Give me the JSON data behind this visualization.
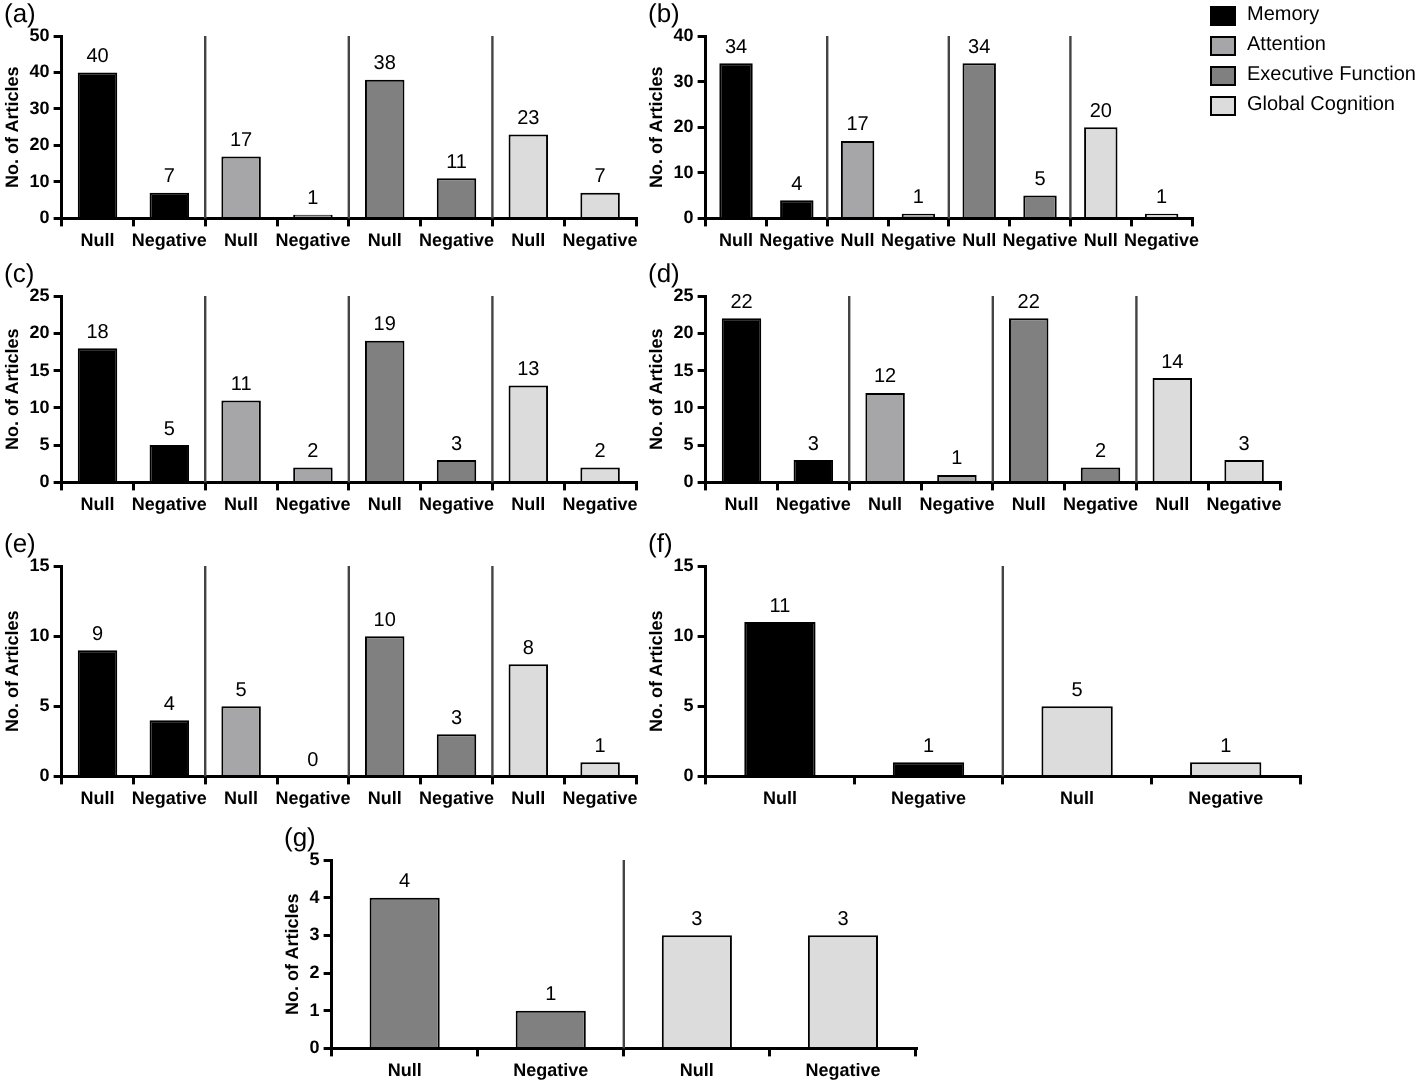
{
  "chart_data": [
    {
      "type": "bar",
      "title": "(a)",
      "ylabel": "No. of Articles",
      "categories": [
        "Null",
        "Negative",
        "Null",
        "Negative",
        "Null",
        "Negative",
        "Null",
        "Negative"
      ],
      "ylim": [
        0,
        50
      ],
      "yticks": [
        0,
        10,
        20,
        30,
        40,
        50
      ],
      "data_labels": true,
      "series": [
        {
          "color": "#000000",
          "values": [
            40,
            7,
            null,
            null,
            null,
            null,
            null,
            null
          ]
        },
        {
          "color": "#a6a6a8",
          "values": [
            null,
            null,
            17,
            1,
            null,
            null,
            null,
            null
          ]
        },
        {
          "color": "#808080",
          "values": [
            null,
            null,
            null,
            null,
            38,
            11,
            null,
            null
          ]
        },
        {
          "color": "#dcdcdc",
          "values": [
            null,
            null,
            null,
            null,
            null,
            null,
            23,
            7
          ]
        }
      ]
    },
    {
      "type": "bar",
      "title": "(b)",
      "ylabel": "No. of Articles",
      "categories": [
        "Null",
        "Negative",
        "Null",
        "Negative",
        "Null",
        "Negative",
        "Null",
        "Negative"
      ],
      "ylim": [
        0,
        40
      ],
      "yticks": [
        0,
        10,
        20,
        30,
        40
      ],
      "data_labels": true,
      "legend": "top right",
      "series": [
        {
          "name": "Memory",
          "color": "#000000",
          "values": [
            34,
            4,
            null,
            null,
            null,
            null,
            null,
            null
          ]
        },
        {
          "name": "Attention",
          "color": "#a6a6a8",
          "values": [
            null,
            null,
            17,
            1,
            null,
            null,
            null,
            null
          ]
        },
        {
          "name": "Executive Function",
          "color": "#808080",
          "values": [
            null,
            null,
            null,
            null,
            34,
            5,
            null,
            null
          ]
        },
        {
          "name": "Global Cognition",
          "color": "#dcdcdc",
          "values": [
            null,
            null,
            null,
            null,
            null,
            null,
            20,
            1
          ]
        }
      ]
    },
    {
      "type": "bar",
      "title": "(c)",
      "ylabel": "No. of Articles",
      "categories": [
        "Null",
        "Negative",
        "Null",
        "Negative",
        "Null",
        "Negative",
        "Null",
        "Negative"
      ],
      "ylim": [
        0,
        25
      ],
      "yticks": [
        0,
        5,
        10,
        15,
        20,
        25
      ],
      "data_labels": true,
      "series": [
        {
          "color": "#000000",
          "values": [
            18,
            5,
            null,
            null,
            null,
            null,
            null,
            null
          ]
        },
        {
          "color": "#a6a6a8",
          "values": [
            null,
            null,
            11,
            2,
            null,
            null,
            null,
            null
          ]
        },
        {
          "color": "#808080",
          "values": [
            null,
            null,
            null,
            null,
            19,
            3,
            null,
            null
          ]
        },
        {
          "color": "#dcdcdc",
          "values": [
            null,
            null,
            null,
            null,
            null,
            null,
            13,
            2
          ]
        }
      ]
    },
    {
      "type": "bar",
      "title": "(d)",
      "ylabel": "No. of Articles",
      "categories": [
        "Null",
        "Negative",
        "Null",
        "Negative",
        "Null",
        "Negative",
        "Null",
        "Negative"
      ],
      "ylim": [
        0,
        25
      ],
      "yticks": [
        0,
        5,
        10,
        15,
        20,
        25
      ],
      "data_labels": true,
      "series": [
        {
          "color": "#000000",
          "values": [
            22,
            3,
            null,
            null,
            null,
            null,
            null,
            null
          ]
        },
        {
          "color": "#a6a6a8",
          "values": [
            null,
            null,
            12,
            1,
            null,
            null,
            null,
            null
          ]
        },
        {
          "color": "#808080",
          "values": [
            null,
            null,
            null,
            null,
            22,
            2,
            null,
            null
          ]
        },
        {
          "color": "#dcdcdc",
          "values": [
            null,
            null,
            null,
            null,
            null,
            null,
            14,
            3
          ]
        }
      ]
    },
    {
      "type": "bar",
      "title": "(e)",
      "ylabel": "No. of Articles",
      "categories": [
        "Null",
        "Negative",
        "Null",
        "Negative",
        "Null",
        "Negative",
        "Null",
        "Negative"
      ],
      "ylim": [
        0,
        15
      ],
      "yticks": [
        0,
        5,
        10,
        15
      ],
      "data_labels": true,
      "series": [
        {
          "color": "#000000",
          "values": [
            9,
            4,
            null,
            null,
            null,
            null,
            null,
            null
          ]
        },
        {
          "color": "#a6a6a8",
          "values": [
            null,
            null,
            5,
            0,
            null,
            null,
            null,
            null
          ]
        },
        {
          "color": "#808080",
          "values": [
            null,
            null,
            null,
            null,
            10,
            3,
            null,
            null
          ]
        },
        {
          "color": "#dcdcdc",
          "values": [
            null,
            null,
            null,
            null,
            null,
            null,
            8,
            1
          ]
        }
      ]
    },
    {
      "type": "bar",
      "title": "(f)",
      "ylabel": "No. of Articles",
      "categories": [
        "Null",
        "Negative",
        "Null",
        "Negative"
      ],
      "ylim": [
        0,
        15
      ],
      "yticks": [
        0,
        5,
        10,
        15
      ],
      "data_labels": true,
      "series": [
        {
          "color": "#000000",
          "values": [
            11,
            1,
            null,
            null
          ]
        },
        {
          "color": "#dcdcdc",
          "values": [
            null,
            null,
            5,
            1
          ]
        }
      ]
    },
    {
      "type": "bar",
      "title": "(g)",
      "ylabel": "No. of Articles",
      "categories": [
        "Null",
        "Negative",
        "Null",
        "Negative"
      ],
      "ylim": [
        0,
        5
      ],
      "yticks": [
        0,
        1,
        2,
        3,
        4,
        5
      ],
      "data_labels": true,
      "series": [
        {
          "color": "#808080",
          "values": [
            4,
            1,
            null,
            null
          ]
        },
        {
          "color": "#dcdcdc",
          "values": [
            null,
            null,
            3,
            3
          ]
        }
      ]
    }
  ]
}
